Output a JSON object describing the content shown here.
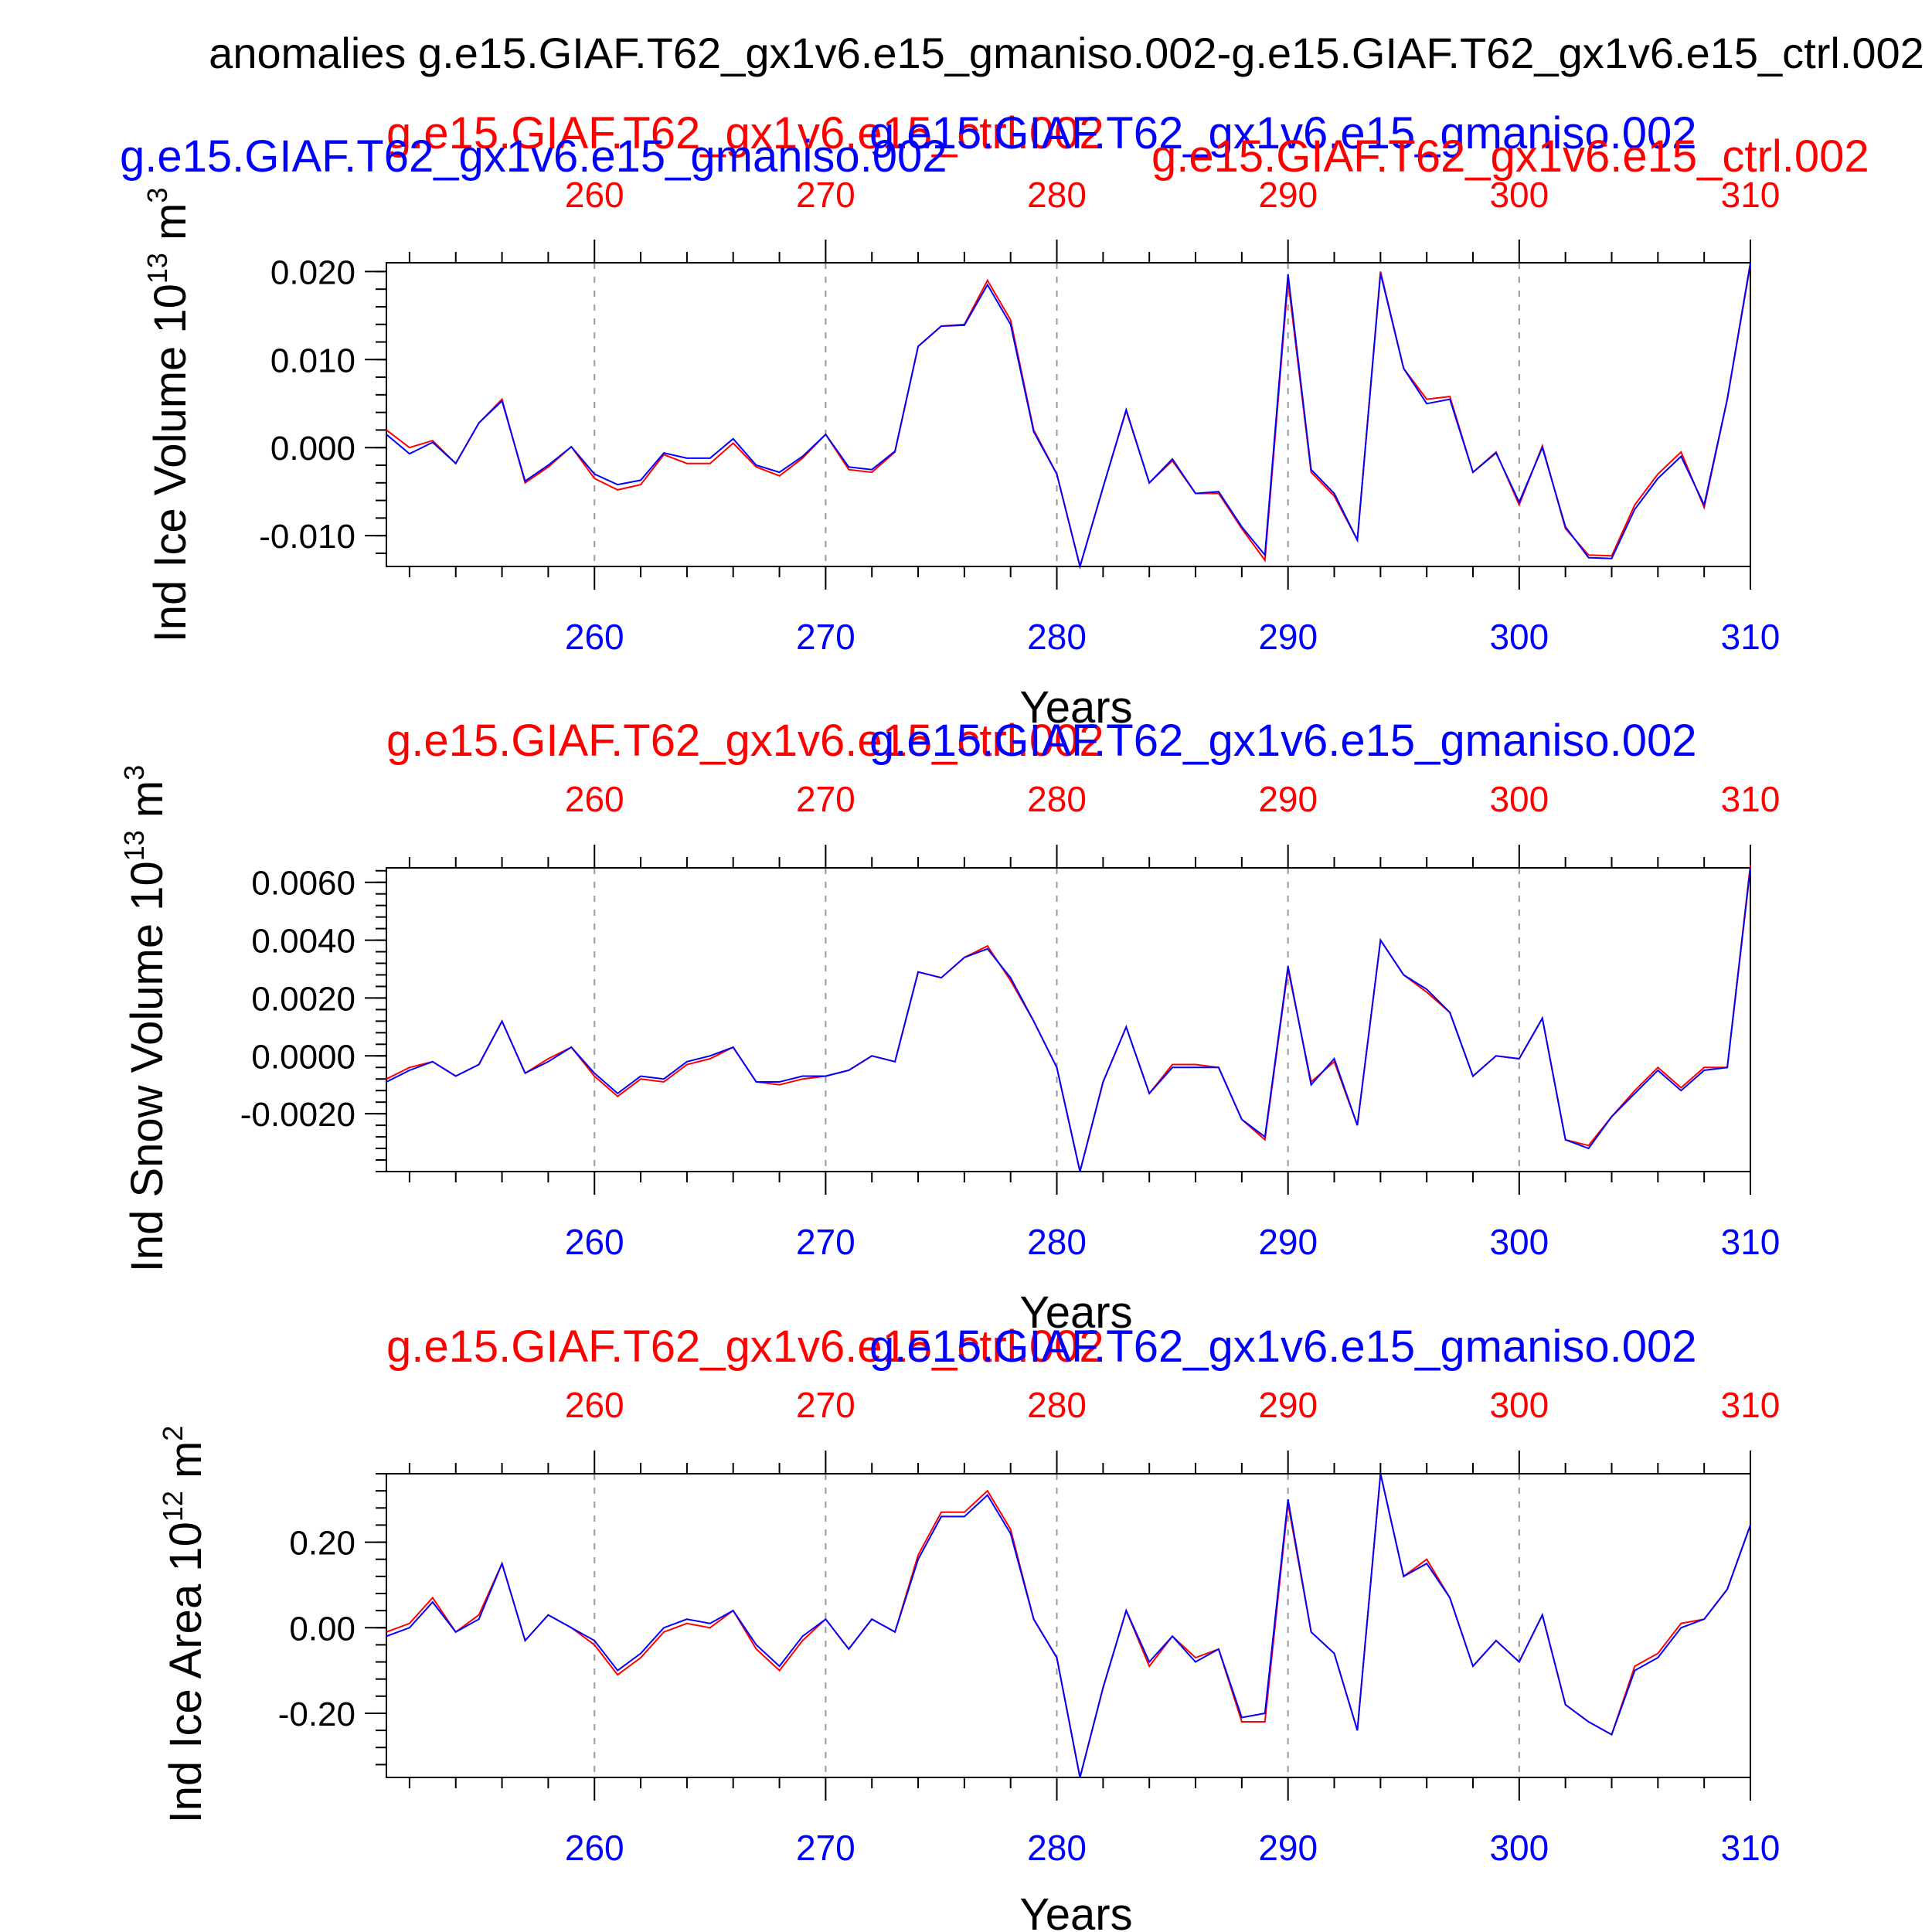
{
  "figure": {
    "title": "anomalies g.e15.GIAF.T62_gx1v6.e15_gmaniso.002-g.e15.GIAF.T62_gx1v6.e15_ctrl.002",
    "colors": {
      "ctrl": "#ff0000",
      "gmaniso": "#0000ff",
      "axis": "#000000",
      "grid": "#999999"
    }
  },
  "chart_data": [
    {
      "type": "line",
      "top_labels": [
        {
          "text": "g.e15.GIAF.T62_gx1v6.e15_ctrl.002",
          "color": "#ff0000"
        },
        {
          "text": "g.e15.GIAF.T62_gx1v6.e15_gmaniso.002",
          "color": "#0000ff"
        },
        {
          "text": "g.e15.GIAF.T62_gx1v6.e15_gmaniso.002",
          "color": "#0000ff"
        },
        {
          "text": "g.e15.GIAF.T62_gx1v6.e15_ctrl.002",
          "color": "#ff0000"
        }
      ],
      "ylabel": "Ind Ice Volume 10",
      "ylabel_exp": "13",
      "ylabel_unit": " m",
      "ylabel_unit_exp": "3",
      "xlabel": "Years",
      "xlim": [
        251,
        310
      ],
      "ylim": [
        -0.0135,
        0.021
      ],
      "yticks": [
        -0.01,
        0.0,
        0.01,
        0.02
      ],
      "yticklabels": [
        "-0.010",
        "0.000",
        "0.010",
        "0.020"
      ],
      "xticks": [
        260,
        270,
        280,
        290,
        300,
        310
      ],
      "xticklabels": [
        "260",
        "270",
        "280",
        "290",
        "300",
        "310"
      ],
      "grid": "vertical dashed",
      "x": [
        251,
        252,
        253,
        254,
        255,
        256,
        257,
        258,
        259,
        260,
        261,
        262,
        263,
        264,
        265,
        266,
        267,
        268,
        269,
        270,
        271,
        272,
        273,
        274,
        275,
        276,
        277,
        278,
        279,
        280,
        281,
        282,
        283,
        284,
        285,
        286,
        287,
        288,
        289,
        290,
        291,
        292,
        293,
        294,
        295,
        296,
        297,
        298,
        299,
        300,
        301,
        302,
        303,
        304,
        305,
        306,
        307,
        308,
        309,
        310
      ],
      "series": [
        {
          "name": "g.e15.GIAF.T62_gx1v6.e15_ctrl.002",
          "color": "#ff0000",
          "values": [
            0.002,
            0.0,
            0.0008,
            -0.0018,
            0.0028,
            0.0055,
            -0.004,
            -0.0022,
            0.0001,
            -0.0035,
            -0.0048,
            -0.0042,
            -0.0008,
            -0.0018,
            -0.0018,
            0.0005,
            -0.0022,
            -0.0032,
            -0.0012,
            0.0015,
            -0.0025,
            -0.0028,
            -0.0005,
            0.0115,
            0.0138,
            0.014,
            0.019,
            0.0145,
            0.002,
            -0.003,
            -0.0135,
            -0.0045,
            0.0042,
            -0.004,
            -0.0015,
            -0.0052,
            -0.0052,
            -0.0092,
            -0.0128,
            0.019,
            -0.0028,
            -0.0055,
            -0.0105,
            0.02,
            0.009,
            0.0055,
            0.0058,
            -0.0028,
            -0.0005,
            -0.0065,
            0.0002,
            -0.0092,
            -0.0122,
            -0.0123,
            -0.0065,
            -0.003,
            -0.0005,
            -0.0068,
            0.0055,
            0.0208
          ]
        },
        {
          "name": "g.e15.GIAF.T62_gx1v6.e15_gmaniso.002",
          "color": "#0000ff",
          "values": [
            0.0015,
            -0.0007,
            0.0006,
            -0.0018,
            0.0028,
            0.0053,
            -0.0038,
            -0.002,
            0.0001,
            -0.003,
            -0.0042,
            -0.0037,
            -0.0006,
            -0.0012,
            -0.0012,
            0.001,
            -0.002,
            -0.0028,
            -0.001,
            0.0015,
            -0.0022,
            -0.0025,
            -0.0004,
            0.0115,
            0.0138,
            0.0139,
            0.0185,
            0.014,
            0.0018,
            -0.003,
            -0.0135,
            -0.0045,
            0.0043,
            -0.004,
            -0.0013,
            -0.0052,
            -0.005,
            -0.009,
            -0.0122,
            0.0197,
            -0.0025,
            -0.0052,
            -0.0105,
            0.0198,
            0.009,
            0.005,
            0.0055,
            -0.0028,
            -0.0006,
            -0.0062,
            0.0,
            -0.009,
            -0.0125,
            -0.0126,
            -0.007,
            -0.0035,
            -0.001,
            -0.0065,
            0.0055,
            0.021
          ]
        }
      ]
    },
    {
      "type": "line",
      "top_labels": [
        {
          "text": "g.e15.GIAF.T62_gx1v6.e15_ctrl.002",
          "color": "#ff0000"
        },
        {
          "text": "g.e15.GIAF.T62_gx1v6.e15_gmaniso.002",
          "color": "#0000ff"
        }
      ],
      "ylabel": "Ind Snow Volume 10",
      "ylabel_exp": "13",
      "ylabel_unit": " m",
      "ylabel_unit_exp": "3",
      "xlabel": "Years",
      "xlim": [
        251,
        310
      ],
      "ylim": [
        -0.004,
        0.0065
      ],
      "yticks": [
        -0.002,
        0.0,
        0.002,
        0.004,
        0.006
      ],
      "yticklabels": [
        "-0.0020",
        "0.0000",
        "0.0020",
        "0.0040",
        "0.0060"
      ],
      "xticks": [
        260,
        270,
        280,
        290,
        300,
        310
      ],
      "xticklabels": [
        "260",
        "270",
        "280",
        "290",
        "300",
        "310"
      ],
      "grid": "vertical dashed",
      "x": [
        251,
        252,
        253,
        254,
        255,
        256,
        257,
        258,
        259,
        260,
        261,
        262,
        263,
        264,
        265,
        266,
        267,
        268,
        269,
        270,
        271,
        272,
        273,
        274,
        275,
        276,
        277,
        278,
        279,
        280,
        281,
        282,
        283,
        284,
        285,
        286,
        287,
        288,
        289,
        290,
        291,
        292,
        293,
        294,
        295,
        296,
        297,
        298,
        299,
        300,
        301,
        302,
        303,
        304,
        305,
        306,
        307,
        308,
        309,
        310
      ],
      "series": [
        {
          "name": "g.e15.GIAF.T62_gx1v6.e15_ctrl.002",
          "color": "#ff0000",
          "values": [
            -0.0008,
            -0.0004,
            -0.0002,
            -0.0007,
            -0.0003,
            0.0012,
            -0.0006,
            -0.0001,
            0.0003,
            -0.0007,
            -0.0014,
            -0.0008,
            -0.0009,
            -0.0003,
            -0.0001,
            0.0003,
            -0.0009,
            -0.001,
            -0.0008,
            -0.0007,
            -0.0005,
            0.0,
            -0.0002,
            0.0029,
            0.0027,
            0.0034,
            0.0038,
            0.0026,
            0.0012,
            -0.0004,
            -0.004,
            -0.0009,
            0.001,
            -0.0013,
            -0.0003,
            -0.0003,
            -0.0004,
            -0.0022,
            -0.0029,
            0.003,
            -0.0009,
            -0.0002,
            -0.0024,
            0.004,
            0.0028,
            0.0022,
            0.0015,
            -0.0007,
            0.0,
            -0.0001,
            0.0013,
            -0.0029,
            -0.0031,
            -0.0021,
            -0.0012,
            -0.0004,
            -0.0011,
            -0.0004,
            -0.0004,
            0.0066
          ]
        },
        {
          "name": "g.e15.GIAF.T62_gx1v6.e15_gmaniso.002",
          "color": "#0000ff",
          "values": [
            -0.0009,
            -0.0005,
            -0.0002,
            -0.0007,
            -0.0003,
            0.0012,
            -0.0006,
            -0.0002,
            0.0003,
            -0.0006,
            -0.0013,
            -0.0007,
            -0.0008,
            -0.0002,
            0.0,
            0.0003,
            -0.0009,
            -0.0009,
            -0.0007,
            -0.0007,
            -0.0005,
            0.0,
            -0.0002,
            0.0029,
            0.0027,
            0.0034,
            0.0037,
            0.0027,
            0.0012,
            -0.0004,
            -0.004,
            -0.0009,
            0.001,
            -0.0013,
            -0.0004,
            -0.0004,
            -0.0004,
            -0.0022,
            -0.0028,
            0.0031,
            -0.001,
            -0.0001,
            -0.0024,
            0.004,
            0.0028,
            0.0023,
            0.0015,
            -0.0007,
            0.0,
            -0.0001,
            0.0013,
            -0.0029,
            -0.0032,
            -0.0021,
            -0.0013,
            -0.0005,
            -0.0012,
            -0.0005,
            -0.0004,
            0.0065
          ]
        }
      ]
    },
    {
      "type": "line",
      "top_labels": [
        {
          "text": "g.e15.GIAF.T62_gx1v6.e15_ctrl.002",
          "color": "#ff0000"
        },
        {
          "text": "g.e15.GIAF.T62_gx1v6.e15_gmaniso.002",
          "color": "#0000ff"
        }
      ],
      "ylabel": "Ind Ice Area 10",
      "ylabel_exp": "12",
      "ylabel_unit": " m",
      "ylabel_unit_exp": "2",
      "xlabel": "Years",
      "xlim": [
        251,
        310
      ],
      "ylim": [
        -0.35,
        0.36
      ],
      "yticks": [
        -0.2,
        0.0,
        0.2
      ],
      "yticklabels": [
        "-0.20",
        "0.00",
        "0.20"
      ],
      "xticks": [
        260,
        270,
        280,
        290,
        300,
        310
      ],
      "xticklabels": [
        "260",
        "270",
        "280",
        "290",
        "300",
        "310"
      ],
      "grid": "vertical dashed",
      "x": [
        251,
        252,
        253,
        254,
        255,
        256,
        257,
        258,
        259,
        260,
        261,
        262,
        263,
        264,
        265,
        266,
        267,
        268,
        269,
        270,
        271,
        272,
        273,
        274,
        275,
        276,
        277,
        278,
        279,
        280,
        281,
        282,
        283,
        284,
        285,
        286,
        287,
        288,
        289,
        290,
        291,
        292,
        293,
        294,
        295,
        296,
        297,
        298,
        299,
        300,
        301,
        302,
        303,
        304,
        305,
        306,
        307,
        308,
        309,
        310
      ],
      "series": [
        {
          "name": "g.e15.GIAF.T62_gx1v6.e15_ctrl.002",
          "color": "#ff0000",
          "values": [
            -0.01,
            0.01,
            0.07,
            -0.01,
            0.03,
            0.15,
            -0.03,
            0.03,
            0.0,
            -0.04,
            -0.11,
            -0.07,
            -0.01,
            0.01,
            0.0,
            0.04,
            -0.05,
            -0.1,
            -0.03,
            0.02,
            -0.05,
            0.02,
            -0.01,
            0.17,
            0.27,
            0.27,
            0.32,
            0.23,
            0.02,
            -0.07,
            -0.35,
            -0.14,
            0.04,
            -0.09,
            -0.02,
            -0.07,
            -0.05,
            -0.22,
            -0.22,
            0.29,
            -0.01,
            -0.06,
            -0.24,
            0.36,
            0.12,
            0.16,
            0.07,
            -0.09,
            -0.03,
            -0.08,
            0.03,
            -0.18,
            -0.22,
            -0.25,
            -0.09,
            -0.06,
            0.01,
            0.02,
            0.09,
            0.24
          ]
        },
        {
          "name": "g.e15.GIAF.T62_gx1v6.e15_gmaniso.002",
          "color": "#0000ff",
          "values": [
            -0.02,
            0.0,
            0.06,
            -0.01,
            0.02,
            0.15,
            -0.03,
            0.03,
            0.0,
            -0.03,
            -0.1,
            -0.06,
            0.0,
            0.02,
            0.01,
            0.04,
            -0.04,
            -0.09,
            -0.02,
            0.02,
            -0.05,
            0.02,
            -0.01,
            0.16,
            0.26,
            0.26,
            0.31,
            0.22,
            0.02,
            -0.07,
            -0.35,
            -0.14,
            0.04,
            -0.08,
            -0.02,
            -0.08,
            -0.05,
            -0.21,
            -0.2,
            0.3,
            -0.01,
            -0.06,
            -0.24,
            0.36,
            0.12,
            0.15,
            0.07,
            -0.09,
            -0.03,
            -0.08,
            0.03,
            -0.18,
            -0.22,
            -0.25,
            -0.1,
            -0.07,
            0.0,
            0.02,
            0.09,
            0.24
          ]
        }
      ]
    }
  ]
}
